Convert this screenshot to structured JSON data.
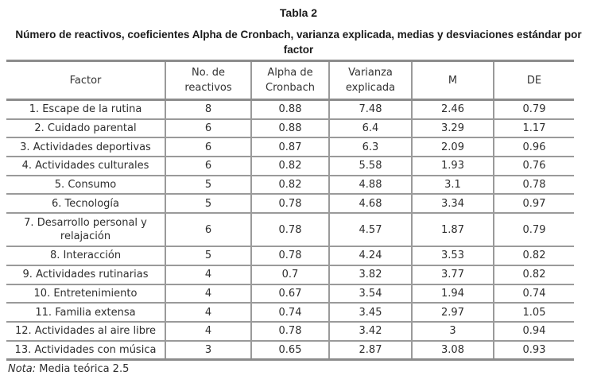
{
  "caption": {
    "label": "Tabla 2",
    "title": "Número de reactivos, coeficientes Alpha de Cronbach, varianza explicada, medias y desviaciones estándar por factor"
  },
  "table": {
    "headers": [
      "Factor",
      "No. de reactivos",
      "Alpha de Cronbach",
      "Varianza explicada",
      "M",
      "DE"
    ],
    "rows": [
      [
        "1. Escape de la rutina",
        "8",
        "0.88",
        "7.48",
        "2.46",
        "0.79"
      ],
      [
        "2. Cuidado parental",
        "6",
        "0.88",
        "6.4",
        "3.29",
        "1.17"
      ],
      [
        "3. Actividades deportivas",
        "6",
        "0.87",
        "6.3",
        "2.09",
        "0.96"
      ],
      [
        "4. Actividades culturales",
        "6",
        "0.82",
        "5.58",
        "1.93",
        "0.76"
      ],
      [
        "5. Consumo",
        "5",
        "0.82",
        "4.88",
        "3.1",
        "0.78"
      ],
      [
        "6. Tecnología",
        "5",
        "0.78",
        "4.68",
        "3.34",
        "0.97"
      ],
      [
        "7. Desarrollo personal y relajación",
        "6",
        "0.78",
        "4.57",
        "1.87",
        "0.79"
      ],
      [
        "8. Interacción",
        "5",
        "0.78",
        "4.24",
        "3.53",
        "0.82"
      ],
      [
        "9. Actividades rutinarias",
        "4",
        "0.7",
        "3.82",
        "3.77",
        "0.82"
      ],
      [
        "10. Entretenimiento",
        "4",
        "0.67",
        "3.54",
        "1.94",
        "0.74"
      ],
      [
        "11. Familia extensa",
        "4",
        "0.74",
        "3.45",
        "2.97",
        "1.05"
      ],
      [
        "12. Actividades al aire libre",
        "4",
        "0.78",
        "3.42",
        "3",
        "0.94"
      ],
      [
        "13. Actividades con música",
        "3",
        "0.65",
        "2.87",
        "3.08",
        "0.93"
      ]
    ]
  },
  "note": {
    "label": "Nota:",
    "text": " Media teórica 2.5"
  }
}
